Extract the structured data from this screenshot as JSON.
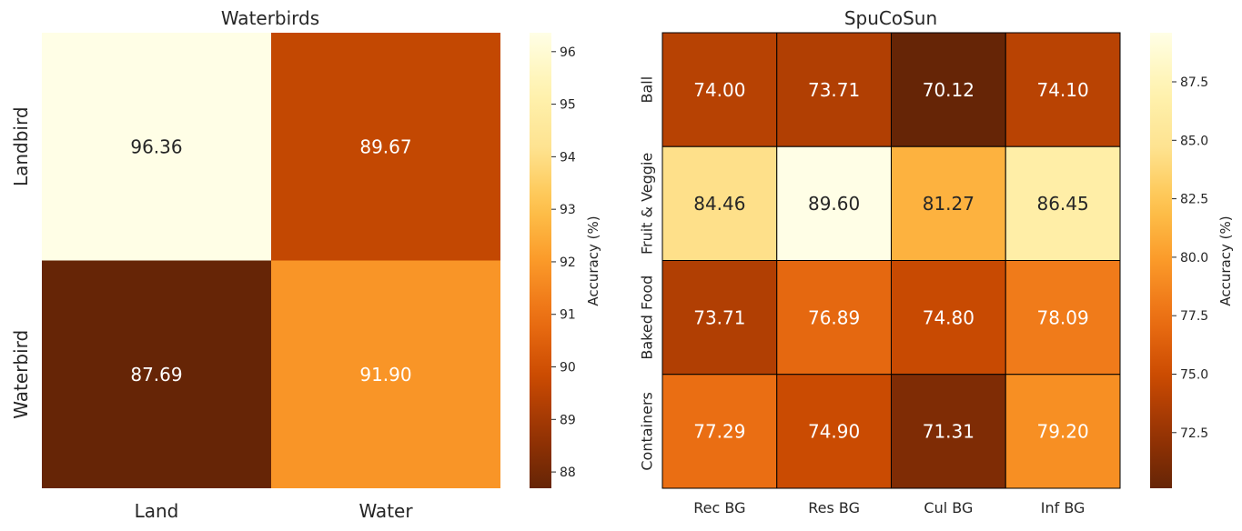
{
  "colors": {
    "colormap": [
      "#fffee6",
      "#fff3b0",
      "#fee391",
      "#fec44f",
      "#fb9a29",
      "#ec7014",
      "#cc4c02",
      "#993404",
      "#662506"
    ],
    "text_dark": "#262626",
    "text_light": "#ffffff",
    "cell_border": "#000000"
  },
  "chart_data": [
    {
      "type": "heatmap",
      "title": "Waterbirds",
      "x_labels": [
        "Land",
        "Water"
      ],
      "y_labels": [
        "Landbird",
        "Waterbird"
      ],
      "values": [
        [
          96.36,
          89.67
        ],
        [
          87.69,
          91.9
        ]
      ],
      "value_labels": [
        [
          "96.36",
          "89.67"
        ],
        [
          "87.69",
          "91.90"
        ]
      ],
      "vmin": 87.69,
      "vmax": 96.36,
      "colorbar": {
        "label": "Accuracy (%)",
        "ticks": [
          88,
          89,
          90,
          91,
          92,
          93,
          94,
          95,
          96
        ],
        "tick_labels": [
          "88",
          "89",
          "90",
          "91",
          "92",
          "93",
          "94",
          "95",
          "96"
        ]
      },
      "grid_lines": false
    },
    {
      "type": "heatmap",
      "title": "SpuCoSun",
      "x_labels": [
        "Rec BG",
        "Res BG",
        "Cul BG",
        "Inf BG"
      ],
      "y_labels": [
        "Ball",
        "Fruit & Veggie",
        "Baked Food",
        "Containers"
      ],
      "values": [
        [
          74.0,
          73.71,
          70.12,
          74.1
        ],
        [
          84.46,
          89.6,
          81.27,
          86.45
        ],
        [
          73.71,
          76.89,
          74.8,
          78.09
        ],
        [
          77.29,
          74.9,
          71.31,
          79.2
        ]
      ],
      "value_labels": [
        [
          "74.00",
          "73.71",
          "70.12",
          "74.10"
        ],
        [
          "84.46",
          "89.60",
          "81.27",
          "86.45"
        ],
        [
          "73.71",
          "76.89",
          "74.80",
          "78.09"
        ],
        [
          "77.29",
          "74.90",
          "71.31",
          "79.20"
        ]
      ],
      "vmin": 70.12,
      "vmax": 89.6,
      "colorbar": {
        "label": "Accuracy (%)",
        "ticks": [
          72.5,
          75.0,
          77.5,
          80.0,
          82.5,
          85.0,
          87.5
        ],
        "tick_labels": [
          "72.5",
          "75.0",
          "77.5",
          "80.0",
          "82.5",
          "85.0",
          "87.5"
        ]
      },
      "grid_lines": true
    }
  ]
}
